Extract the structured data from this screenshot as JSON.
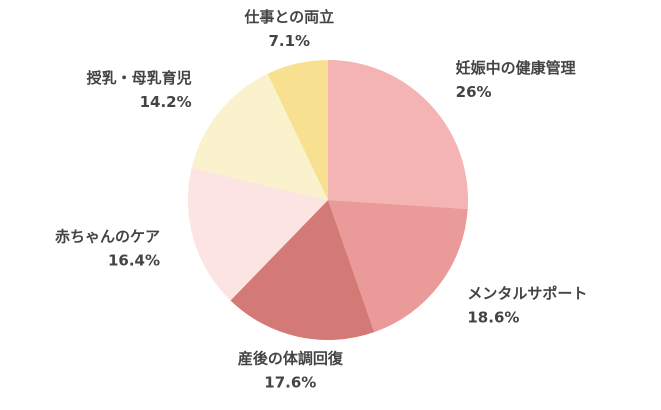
{
  "chart_data": {
    "type": "pie",
    "categories": [
      "妊娠中の健康管理",
      "メンタルサポート",
      "産後の体調回復",
      "赤ちゃんのケア",
      "授乳・母乳育児",
      "仕事との両立"
    ],
    "values": [
      26,
      18.6,
      17.6,
      16.4,
      14.2,
      7.1
    ],
    "value_labels": [
      "26%",
      "18.6%",
      "17.6%",
      "16.4%",
      "14.2%",
      "7.1%"
    ],
    "colors": [
      "#f4b4b3",
      "#ea9a98",
      "#d47a76",
      "#fbe4e1",
      "#faf2cd",
      "#f7e191"
    ]
  }
}
